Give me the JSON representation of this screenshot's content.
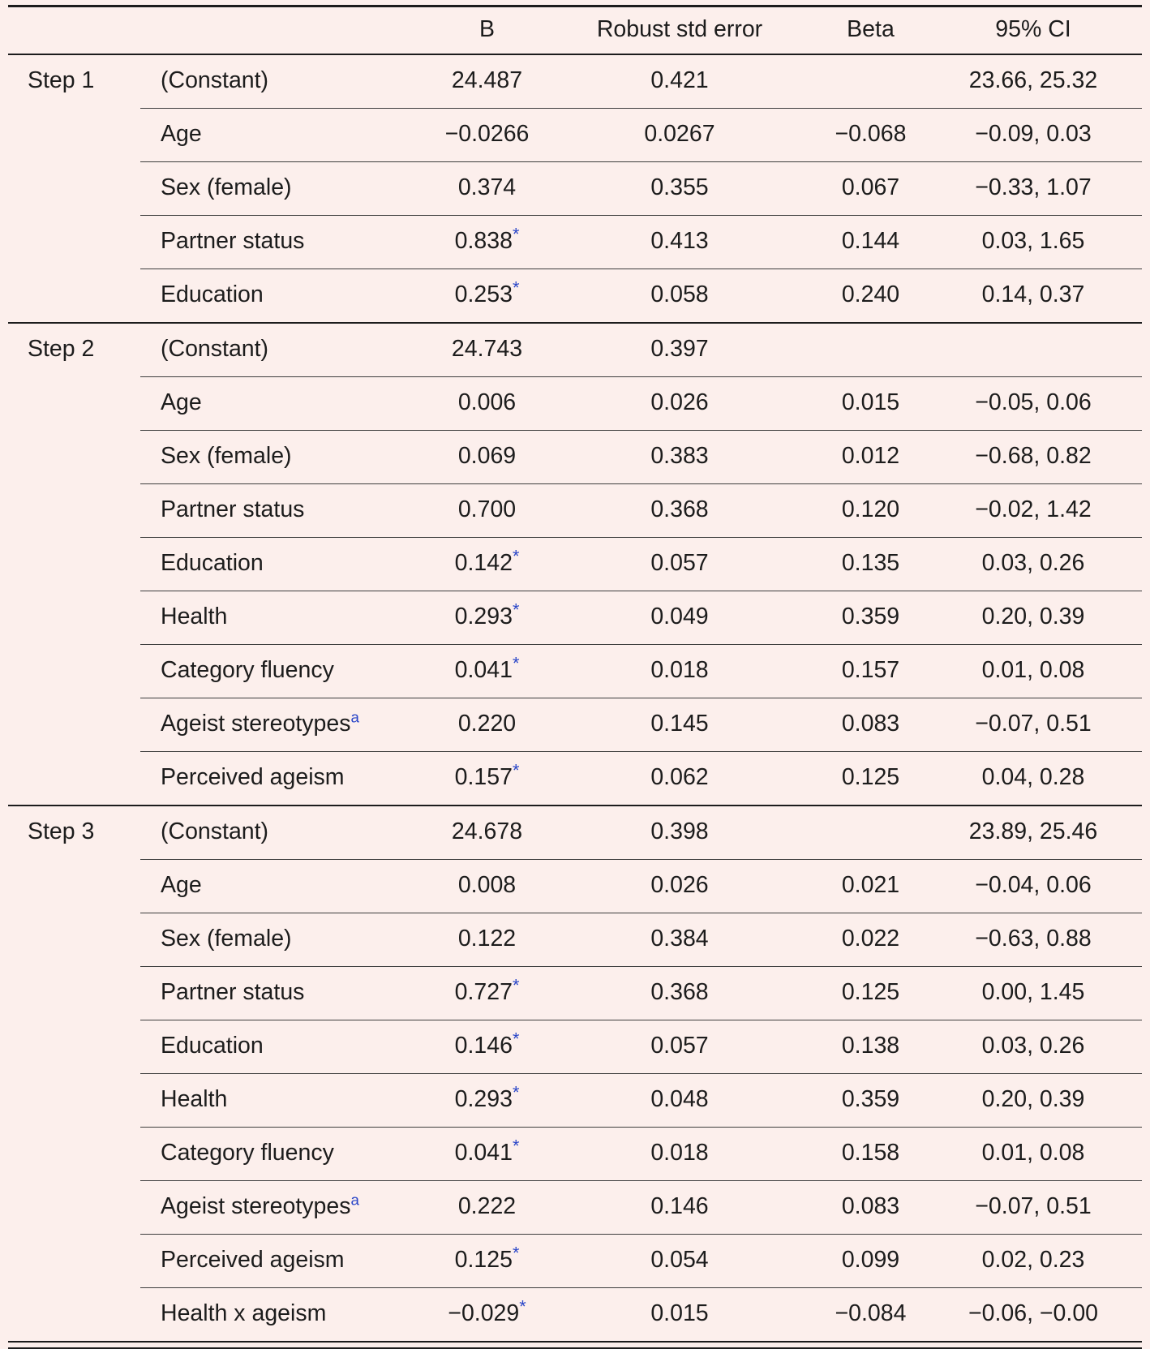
{
  "table": {
    "star_symbol": "*",
    "header": {
      "b": "B",
      "se": "Robust std error",
      "beta": "Beta",
      "ci": "95% CI"
    },
    "colors": {
      "background": "#fcefec",
      "text": "#1c1c1c",
      "accent_blue": "#2a46c8",
      "rule": "#1c1c1c"
    },
    "steps": [
      {
        "label": "Step 1",
        "rows": [
          {
            "label": "(Constant)",
            "b": "24.487",
            "star": false,
            "sup": "",
            "se": "0.421",
            "beta": "",
            "ci": "23.66, 25.32"
          },
          {
            "label": "Age",
            "b": "−0.0266",
            "star": false,
            "sup": "",
            "se": "0.0267",
            "beta": "−0.068",
            "ci": "−0.09, 0.03"
          },
          {
            "label": "Sex (female)",
            "b": "0.374",
            "star": false,
            "sup": "",
            "se": "0.355",
            "beta": "0.067",
            "ci": "−0.33, 1.07"
          },
          {
            "label": "Partner status",
            "b": "0.838",
            "star": true,
            "sup": "",
            "se": "0.413",
            "beta": "0.144",
            "ci": "0.03, 1.65"
          },
          {
            "label": "Education",
            "b": "0.253",
            "star": true,
            "sup": "",
            "se": "0.058",
            "beta": "0.240",
            "ci": "0.14, 0.37"
          }
        ]
      },
      {
        "label": "Step 2",
        "rows": [
          {
            "label": "(Constant)",
            "b": "24.743",
            "star": false,
            "sup": "",
            "se": "0.397",
            "beta": "",
            "ci": ""
          },
          {
            "label": "Age",
            "b": "0.006",
            "star": false,
            "sup": "",
            "se": "0.026",
            "beta": "0.015",
            "ci": "−0.05, 0.06"
          },
          {
            "label": "Sex (female)",
            "b": "0.069",
            "star": false,
            "sup": "",
            "se": "0.383",
            "beta": "0.012",
            "ci": "−0.68, 0.82"
          },
          {
            "label": "Partner status",
            "b": "0.700",
            "star": false,
            "sup": "",
            "se": "0.368",
            "beta": "0.120",
            "ci": "−0.02, 1.42"
          },
          {
            "label": "Education",
            "b": "0.142",
            "star": true,
            "sup": "",
            "se": "0.057",
            "beta": "0.135",
            "ci": "0.03, 0.26"
          },
          {
            "label": "Health",
            "b": "0.293",
            "star": true,
            "sup": "",
            "se": "0.049",
            "beta": "0.359",
            "ci": "0.20, 0.39"
          },
          {
            "label": "Category fluency",
            "b": "0.041",
            "star": true,
            "sup": "",
            "se": "0.018",
            "beta": "0.157",
            "ci": "0.01, 0.08"
          },
          {
            "label": "Ageist stereotypes",
            "b": "0.220",
            "star": false,
            "sup": "a",
            "se": "0.145",
            "beta": "0.083",
            "ci": "−0.07, 0.51"
          },
          {
            "label": "Perceived ageism",
            "b": "0.157",
            "star": true,
            "sup": "",
            "se": "0.062",
            "beta": "0.125",
            "ci": "0.04, 0.28"
          }
        ]
      },
      {
        "label": "Step 3",
        "rows": [
          {
            "label": "(Constant)",
            "b": "24.678",
            "star": false,
            "sup": "",
            "se": "0.398",
            "beta": "",
            "ci": "23.89, 25.46"
          },
          {
            "label": "Age",
            "b": "0.008",
            "star": false,
            "sup": "",
            "se": "0.026",
            "beta": "0.021",
            "ci": "−0.04, 0.06"
          },
          {
            "label": "Sex (female)",
            "b": "0.122",
            "star": false,
            "sup": "",
            "se": "0.384",
            "beta": "0.022",
            "ci": "−0.63, 0.88"
          },
          {
            "label": "Partner status",
            "b": "0.727",
            "star": true,
            "sup": "",
            "se": "0.368",
            "beta": "0.125",
            "ci": "0.00, 1.45"
          },
          {
            "label": "Education",
            "b": "0.146",
            "star": true,
            "sup": "",
            "se": "0.057",
            "beta": "0.138",
            "ci": "0.03, 0.26"
          },
          {
            "label": "Health",
            "b": "0.293",
            "star": true,
            "sup": "",
            "se": "0.048",
            "beta": "0.359",
            "ci": "0.20, 0.39"
          },
          {
            "label": "Category fluency",
            "b": "0.041",
            "star": true,
            "sup": "",
            "se": "0.018",
            "beta": "0.158",
            "ci": "0.01, 0.08"
          },
          {
            "label": "Ageist stereotypes",
            "b": "0.222",
            "star": false,
            "sup": "a",
            "se": "0.146",
            "beta": "0.083",
            "ci": "−0.07, 0.51"
          },
          {
            "label": "Perceived ageism",
            "b": "0.125",
            "star": true,
            "sup": "",
            "se": "0.054",
            "beta": "0.099",
            "ci": "0.02, 0.23"
          },
          {
            "label": "Health x ageism",
            "b": "−0.029",
            "star": true,
            "sup": "",
            "se": "0.015",
            "beta": "−0.084",
            "ci": "−0.06, −0.00"
          }
        ]
      }
    ]
  }
}
